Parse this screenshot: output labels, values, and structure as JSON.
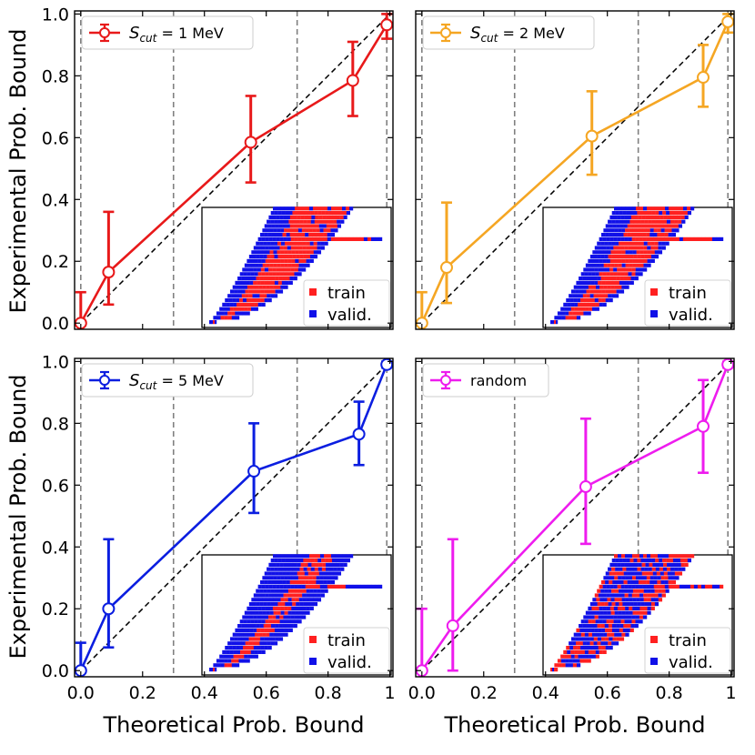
{
  "figure": {
    "xlabel": "Theoretical Prob. Bound",
    "ylabel": "Experimental Prob. Bound"
  },
  "chart_data": [
    {
      "type": "line",
      "panel": "top-left",
      "legend": {
        "prefix": "S",
        "subscript": "cut",
        "suffix": " = 1 MeV",
        "placement": "top-left"
      },
      "color": "#e8191a",
      "x": [
        0.0,
        0.09,
        0.55,
        0.88,
        0.99
      ],
      "y": [
        0.0,
        0.165,
        0.585,
        0.785,
        0.965
      ],
      "yerr_low": [
        0.0,
        0.06,
        0.455,
        0.67,
        0.92
      ],
      "yerr_high": [
        0.1,
        0.36,
        0.735,
        0.91,
        1.0
      ],
      "xlim": [
        -0.02,
        1.01
      ],
      "ylim": [
        -0.02,
        1.01
      ],
      "vlines": [
        0.0,
        0.3,
        0.7,
        0.99
      ],
      "xticks": [
        "0.0",
        "0.2",
        "0.4",
        "0.6",
        "0.8",
        "1"
      ],
      "yticks": [
        "0.0",
        "0.2",
        "0.4",
        "0.6",
        "0.8",
        "1.0"
      ],
      "inset": {
        "legend": [
          "train",
          "valid."
        ],
        "pattern": "core"
      }
    },
    {
      "type": "line",
      "panel": "top-right",
      "legend": {
        "prefix": "S",
        "subscript": "cut",
        "suffix": " = 2 MeV",
        "placement": "top-left"
      },
      "color": "#f5a623",
      "x": [
        0.0,
        0.08,
        0.55,
        0.91,
        0.99
      ],
      "y": [
        0.0,
        0.18,
        0.605,
        0.795,
        0.975
      ],
      "yerr_low": [
        0.0,
        0.065,
        0.48,
        0.7,
        0.94
      ],
      "yerr_high": [
        0.1,
        0.39,
        0.75,
        0.9,
        1.0
      ],
      "xlim": [
        -0.02,
        1.01
      ],
      "ylim": [
        -0.02,
        1.01
      ],
      "vlines": [
        0.0,
        0.3,
        0.7,
        0.99
      ],
      "xticks": [
        "0.0",
        "0.2",
        "0.4",
        "0.6",
        "0.8",
        "1"
      ],
      "yticks": [
        "0.0",
        "0.2",
        "0.4",
        "0.6",
        "0.8",
        "1.0"
      ],
      "inset": {
        "legend": [
          "train",
          "valid."
        ],
        "pattern": "core"
      }
    },
    {
      "type": "line",
      "panel": "bottom-left",
      "legend": {
        "prefix": "S",
        "subscript": "cut",
        "suffix": " = 5 MeV",
        "placement": "top-left"
      },
      "color": "#0b1ee0",
      "x": [
        0.0,
        0.09,
        0.56,
        0.9,
        0.99
      ],
      "y": [
        0.0,
        0.2,
        0.645,
        0.765,
        0.99
      ],
      "yerr_low": [
        0.0,
        0.075,
        0.51,
        0.665,
        0.98
      ],
      "yerr_high": [
        0.09,
        0.425,
        0.8,
        0.87,
        1.0
      ],
      "xlim": [
        -0.02,
        1.01
      ],
      "ylim": [
        -0.02,
        1.01
      ],
      "vlines": [
        0.0,
        0.3,
        0.7,
        0.99
      ],
      "xticks": [
        "0.0",
        "0.2",
        "0.4",
        "0.6",
        "0.8",
        "1"
      ],
      "yticks": [
        "0.0",
        "0.2",
        "0.4",
        "0.6",
        "0.8",
        "1.0"
      ],
      "inset": {
        "legend": [
          "train",
          "valid."
        ],
        "pattern": "narrow"
      }
    },
    {
      "type": "line",
      "panel": "bottom-right",
      "legend": {
        "prefix": "",
        "subscript": "",
        "suffix": "random",
        "placement": "top-left"
      },
      "color": "#ee1cee",
      "x": [
        0.0,
        0.1,
        0.53,
        0.91,
        0.99
      ],
      "y": [
        0.0,
        0.145,
        0.595,
        0.79,
        0.99
      ],
      "yerr_low": [
        0.0,
        0.0,
        0.41,
        0.64,
        0.98
      ],
      "yerr_high": [
        0.2,
        0.425,
        0.815,
        0.94,
        1.0
      ],
      "xlim": [
        -0.02,
        1.01
      ],
      "ylim": [
        -0.02,
        1.01
      ],
      "vlines": [
        0.0,
        0.3,
        0.7,
        0.99
      ],
      "xticks": [
        "0.0",
        "0.2",
        "0.4",
        "0.6",
        "0.8",
        "1"
      ],
      "yticks": [
        "0.0",
        "0.2",
        "0.4",
        "0.6",
        "0.8",
        "1.0"
      ],
      "inset": {
        "legend": [
          "train",
          "valid."
        ],
        "pattern": "random"
      }
    }
  ],
  "colors": {
    "train": "#ff2020",
    "valid": "#1010e8",
    "diagonal": "#000000",
    "vline": "#808080"
  }
}
